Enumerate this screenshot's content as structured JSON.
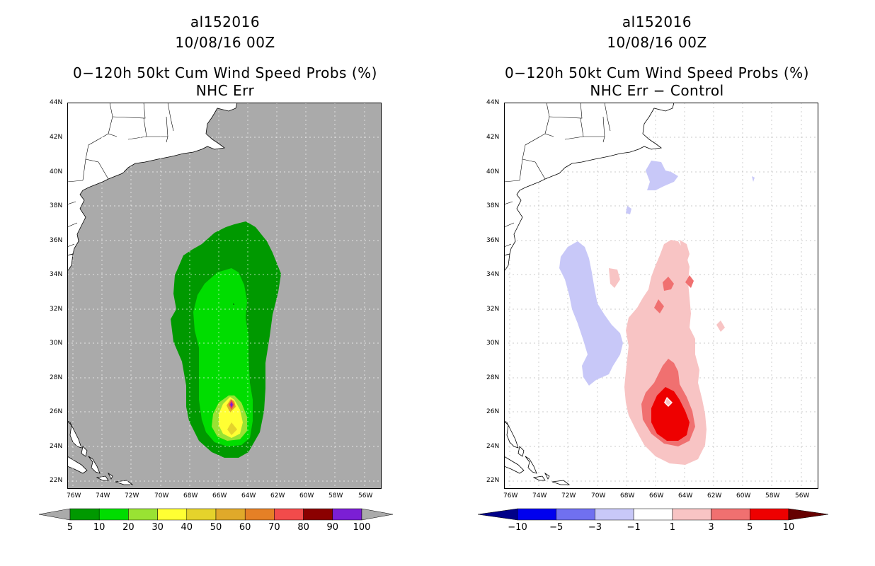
{
  "left_panel": {
    "title_lines": [
      "al152016",
      "10/08/16 00Z",
      "0−120h 50kt Cum Wind Speed Probs (%)",
      "NHC Err"
    ],
    "colorbar": {
      "labels": [
        "5",
        "10",
        "20",
        "30",
        "40",
        "50",
        "60",
        "70",
        "80",
        "90",
        "100"
      ],
      "colors": [
        "#009900",
        "#00dd00",
        "#99e233",
        "#ffff33",
        "#e5d32b",
        "#e0a92a",
        "#e58026",
        "#f24b4b",
        "#8b0000",
        "#7b1fd4"
      ],
      "end_color": "#aaaaaa"
    }
  },
  "right_panel": {
    "title_lines": [
      "al152016",
      "10/08/16 00Z",
      "0−120h 50kt Cum Wind Speed Probs (%)",
      "NHC Err − Control"
    ],
    "colorbar": {
      "labels": [
        "−10",
        "−5",
        "−3",
        "−1",
        "1",
        "3",
        "5",
        "10"
      ],
      "colors": [
        "#0000ee",
        "#7070f0",
        "#c8c8f8",
        "#ffffff",
        "#f8c4c4",
        "#f07070",
        "#ee0000"
      ],
      "low_end_color": "#000088",
      "high_end_color": "#660000"
    }
  },
  "axes": {
    "lat_labels": [
      "44N",
      "42N",
      "40N",
      "38N",
      "36N",
      "34N",
      "32N",
      "30N",
      "28N",
      "26N",
      "24N",
      "22N"
    ],
    "lon_labels": [
      "76W",
      "74W",
      "72W",
      "70W",
      "68W",
      "66W",
      "64W",
      "62W",
      "60W",
      "58W",
      "56W"
    ]
  },
  "colors": {
    "ocean_left": "#aaaaaa",
    "ocean_right": "#ffffff",
    "land": "#ffffff",
    "coast": "#000000",
    "grid": "#cccccc"
  }
}
